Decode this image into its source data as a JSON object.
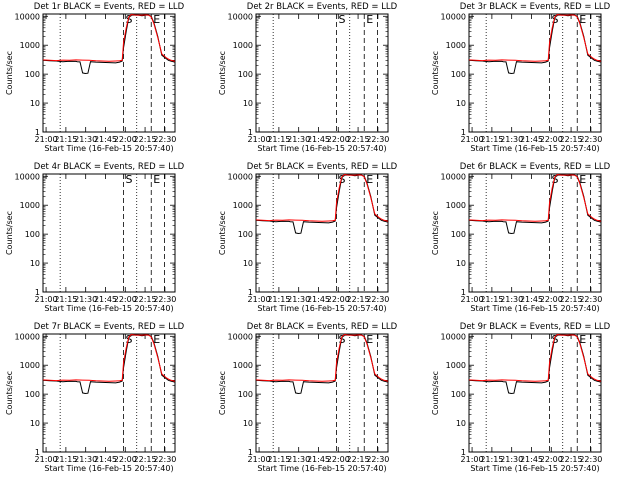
{
  "x_ticks": [
    "21:00",
    "21:15",
    "21:30",
    "21:45",
    "22:00",
    "22:15",
    "22:30"
  ],
  "y_ticks": [
    "1",
    "10",
    "100",
    "1000",
    "10000"
  ],
  "ylabel": "Counts/sec",
  "xlabel": "Start Time (16-Feb-15 20:57:40)",
  "colors": {
    "events": "#000000",
    "lld": "#ff0000",
    "axes": "#000000"
  },
  "chart_data": [
    {
      "title": "Det 1r BLACK = Events, RED = LLD",
      "has_data": true
    },
    {
      "title": "Det 2r BLACK = Events, RED = LLD",
      "has_data": false
    },
    {
      "title": "Det 3r BLACK = Events, RED = LLD",
      "has_data": true
    },
    {
      "title": "Det 4r BLACK = Events, RED = LLD",
      "has_data": false
    },
    {
      "title": "Det 5r BLACK = Events, RED = LLD",
      "has_data": true
    },
    {
      "title": "Det 6r BLACK = Events, RED = LLD",
      "has_data": true
    },
    {
      "title": "Det 7r BLACK = Events, RED = LLD",
      "has_data": true
    },
    {
      "title": "Det 8r BLACK = Events, RED = LLD",
      "has_data": true
    },
    {
      "title": "Det 9r BLACK = Events, RED = LLD",
      "has_data": true
    }
  ],
  "shared": {
    "type": "line",
    "x_range_minutes": [
      0,
      100
    ],
    "y_scale": "log",
    "ylim": [
      1,
      12000
    ],
    "markers": [
      {
        "label": "S",
        "x_min": 61
      },
      {
        "label": "E",
        "x_min": 82
      }
    ],
    "dashed_lines_min": [
      61,
      82,
      92
    ],
    "dotted_lines_min": [
      13,
      71
    ],
    "series": [
      {
        "name": "Events",
        "color": "black",
        "x": [
          0,
          5,
          10,
          15,
          20,
          25,
          26,
          28,
          30,
          32,
          34,
          36,
          40,
          45,
          50,
          55,
          58,
          60,
          61,
          63,
          65,
          67,
          70,
          72,
          75,
          78,
          80,
          82,
          84,
          87,
          90,
          93,
          95,
          97,
          100
        ],
        "y": [
          300,
          290,
          285,
          270,
          280,
          275,
          270,
          265,
          110,
          105,
          108,
          270,
          260,
          255,
          250,
          245,
          260,
          285,
          800,
          3000,
          9000,
          11000,
          11000,
          11000,
          10500,
          11000,
          11000,
          10000,
          6000,
          2000,
          450,
          350,
          300,
          280,
          260
        ]
      },
      {
        "name": "LLD",
        "color": "red",
        "x": [
          0,
          5,
          10,
          15,
          20,
          25,
          30,
          35,
          40,
          45,
          50,
          55,
          58,
          60,
          61,
          63,
          65,
          67,
          70,
          72,
          75,
          78,
          80,
          82,
          84,
          87,
          90,
          93,
          95,
          97,
          100
        ],
        "y": [
          310,
          300,
          295,
          305,
          300,
          310,
          305,
          300,
          290,
          285,
          280,
          285,
          290,
          300,
          1200,
          4000,
          9500,
          11500,
          11000,
          11000,
          11000,
          11200,
          11000,
          9500,
          5500,
          1800,
          500,
          380,
          330,
          300,
          280
        ]
      }
    ]
  }
}
